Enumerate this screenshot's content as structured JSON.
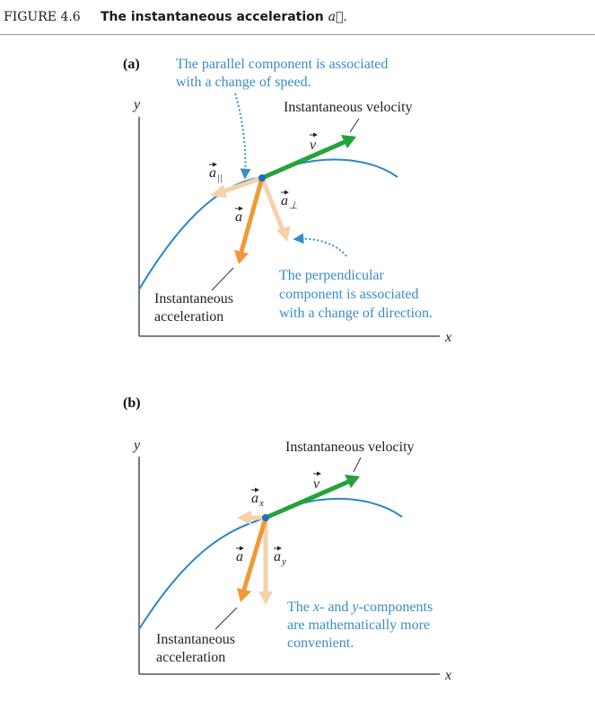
{
  "header": {
    "figure_number": "FIGURE 4.6",
    "title": "The instantaneous acceleration",
    "title_symbol": "a⃗."
  },
  "panel_a": {
    "tag": "(a)",
    "y_axis": "y",
    "x_axis": "x",
    "top_note": [
      "The parallel component is associated",
      "with a change of speed."
    ],
    "velocity_label": "Instantaneous velocity",
    "v_symbol": "v",
    "a_par_symbol": "a",
    "a_par_sub": "||",
    "a_perp_symbol": "a",
    "a_perp_sub": "⊥",
    "a_symbol": "a",
    "accel_label": [
      "Instantaneous",
      "acceleration"
    ],
    "perp_note": [
      "The perpendicular",
      "component is associated",
      "with a change of direction."
    ]
  },
  "panel_b": {
    "tag": "(b)",
    "y_axis": "y",
    "x_axis": "x",
    "velocity_label": "Instantaneous velocity",
    "v_symbol": "v",
    "ax_symbol": "a",
    "ax_sub": "x",
    "a_symbol": "a",
    "ay_symbol": "a",
    "ay_sub": "y",
    "accel_label": [
      "Instantaneous",
      "acceleration"
    ],
    "component_note": [
      {
        "pre": "The ",
        "em1": "x",
        "mid": "- and ",
        "em2": "y",
        "post": "-components"
      },
      "are mathematically more",
      "convenient."
    ]
  },
  "colors": {
    "curve": "#2a86c6",
    "velocity": "#25a33a",
    "acceleration": "#ef9a37",
    "component": "#f6d2aa",
    "note_text": "#3a8dc4",
    "dot": "#1d6fc0"
  },
  "icons": {
    "velocity_arrow": "green-arrow-icon",
    "acceleration_arrow": "orange-arrow-icon",
    "component_arrow": "light-orange-arrow-icon",
    "pointer": "dotted-blue-arrow-icon"
  }
}
